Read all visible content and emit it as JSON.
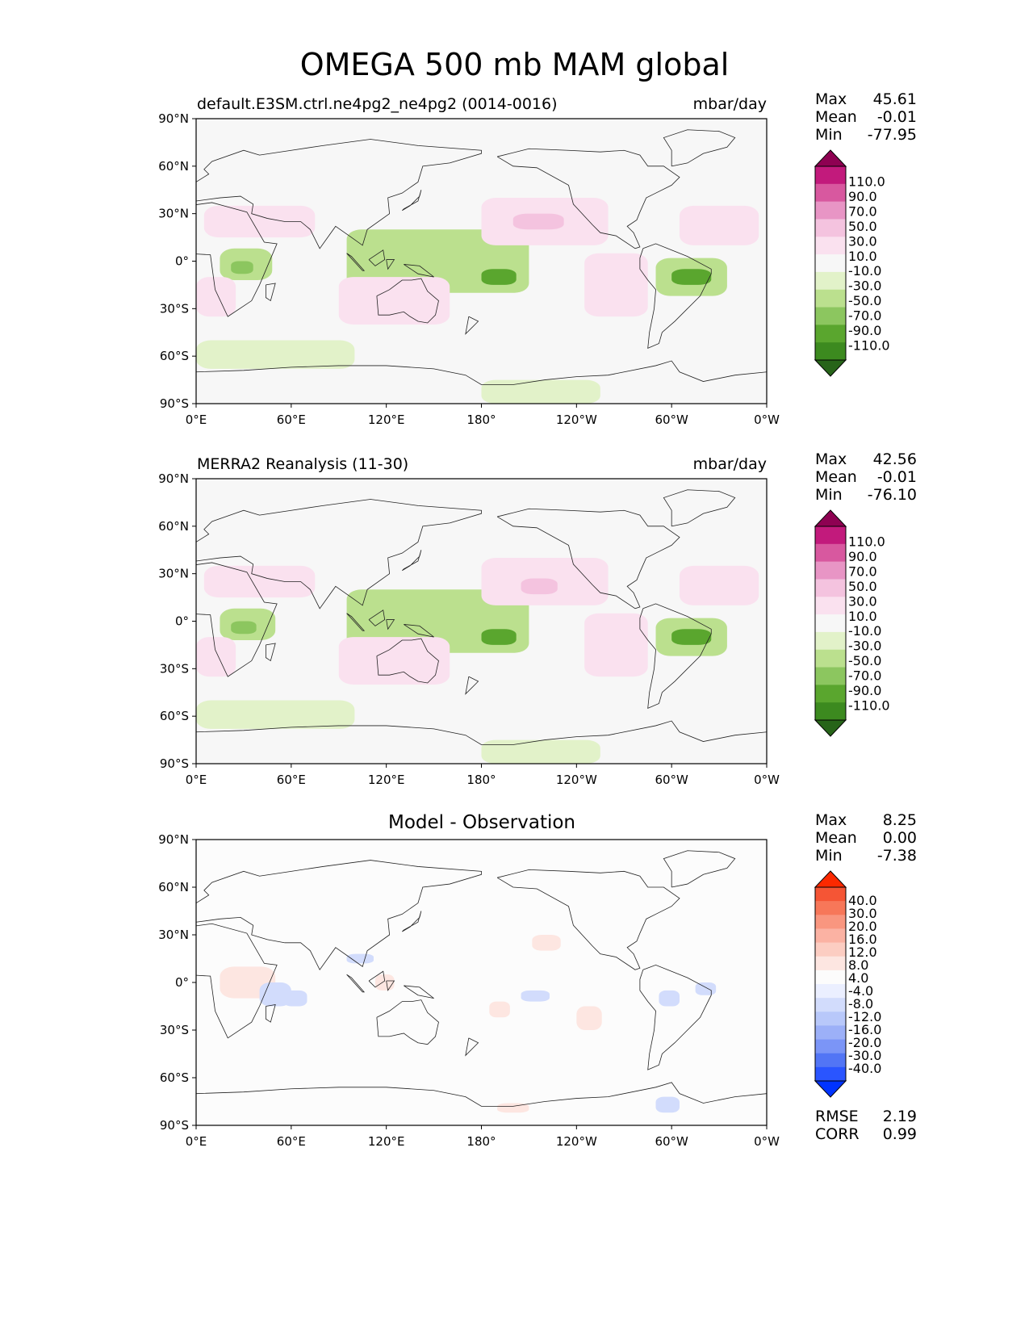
{
  "figure_title": "OMEGA 500 mb MAM global",
  "lon_ticks": [
    "0°E",
    "60°E",
    "120°E",
    "180°",
    "120°W",
    "60°W",
    "0°W"
  ],
  "lat_ticks": [
    "90°N",
    "60°N",
    "30°N",
    "0°",
    "30°S",
    "60°S",
    "90°S"
  ],
  "stat_labels": {
    "max": "Max",
    "mean": "Mean",
    "min": "Min",
    "rmse": "RMSE",
    "corr": "CORR"
  },
  "colors": {
    "field_levels": [
      "#276419",
      "#3c8a1f",
      "#5aa62e",
      "#8cc65f",
      "#bbe08e",
      "#e2f2c9",
      "#f7f7f7",
      "#fae1ef",
      "#f4c3df",
      "#e895c5",
      "#d8589f",
      "#c21a7c",
      "#8e0152"
    ],
    "diff_levels": [
      "#0033ff",
      "#2a55ff",
      "#5275f5",
      "#7b95f7",
      "#9cb0f8",
      "#b8c8fa",
      "#d2dcfc",
      "#ebefff",
      "#fcfcfc",
      "#fde6e1",
      "#fccdc2",
      "#fbb2a3",
      "#f9967f",
      "#f77759",
      "#f55535",
      "#fb2900"
    ]
  },
  "chart_data": [
    {
      "type": "heatmap",
      "panel": "test",
      "title_left": "default.E3SM.ctrl.ne4pg2_ne4pg2 (0014-0016)",
      "title_right": "mbar/day",
      "stats": {
        "max": "45.61",
        "mean": "-0.01",
        "min": "-77.95"
      },
      "colorbar_labels": [
        "110.0",
        "90.0",
        "70.0",
        "50.0",
        "30.0",
        "10.0",
        "-10.0",
        "-30.0",
        "-50.0",
        "-70.0",
        "-90.0",
        "-110.0"
      ],
      "regions": [
        {
          "name": "central Africa",
          "lon": [
            15,
            48
          ],
          "lat": [
            -12,
            8
          ],
          "value": -40
        },
        {
          "name": "east Africa core",
          "lon": [
            22,
            36
          ],
          "lat": [
            -8,
            0
          ],
          "value": -60
        },
        {
          "name": "Maritime continent to SPCZ",
          "lon": [
            95,
            210
          ],
          "lat": [
            -20,
            20
          ],
          "value": -35
        },
        {
          "name": "SPCZ core",
          "lon": [
            180,
            202
          ],
          "lat": [
            -15,
            -5
          ],
          "value": -70
        },
        {
          "name": "Amazon",
          "lon": [
            290,
            335
          ],
          "lat": [
            -22,
            2
          ],
          "value": -40
        },
        {
          "name": "Amazon core",
          "lon": [
            300,
            325
          ],
          "lat": [
            -15,
            -5
          ],
          "value": -75
        },
        {
          "name": "North Pacific subsidence",
          "lon": [
            180,
            260
          ],
          "lat": [
            10,
            40
          ],
          "value": 30
        },
        {
          "name": "North Pacific core",
          "lon": [
            200,
            232
          ],
          "lat": [
            20,
            30
          ],
          "value": 45
        },
        {
          "name": "North Atlantic subsidence",
          "lon": [
            305,
            355
          ],
          "lat": [
            10,
            35
          ],
          "value": 30
        },
        {
          "name": "Sahara",
          "lon": [
            5,
            75
          ],
          "lat": [
            15,
            35
          ],
          "value": 20
        },
        {
          "name": "South Atlantic",
          "lon": [
            0,
            25
          ],
          "lat": [
            -35,
            -10
          ],
          "value": 25
        },
        {
          "name": "Australia subsidence",
          "lon": [
            90,
            160
          ],
          "lat": [
            -40,
            -10
          ],
          "value": 20
        },
        {
          "name": "SE Pacific subsidence",
          "lon": [
            245,
            285
          ],
          "lat": [
            -35,
            5
          ],
          "value": 20
        },
        {
          "name": "Southern Ocean ascent",
          "lon": [
            0,
            100
          ],
          "lat": [
            -68,
            -50
          ],
          "value": -15
        },
        {
          "name": "Antarctic coast ascent",
          "lon": [
            180,
            255
          ],
          "lat": [
            -90,
            -75
          ],
          "value": -15
        }
      ]
    },
    {
      "type": "heatmap",
      "panel": "reference",
      "title_left": "MERRA2 Reanalysis (11-30)",
      "title_right": "mbar/day",
      "stats": {
        "max": "42.56",
        "mean": "-0.01",
        "min": "-76.10"
      },
      "colorbar_labels": [
        "110.0",
        "90.0",
        "70.0",
        "50.0",
        "30.0",
        "10.0",
        "-10.0",
        "-30.0",
        "-50.0",
        "-70.0",
        "-90.0",
        "-110.0"
      ],
      "regions": [
        {
          "name": "central Africa",
          "lon": [
            15,
            50
          ],
          "lat": [
            -12,
            8
          ],
          "value": -40
        },
        {
          "name": "east Africa core",
          "lon": [
            22,
            38
          ],
          "lat": [
            -8,
            0
          ],
          "value": -60
        },
        {
          "name": "Maritime continent to SPCZ",
          "lon": [
            95,
            210
          ],
          "lat": [
            -20,
            20
          ],
          "value": -35
        },
        {
          "name": "SPCZ core",
          "lon": [
            180,
            202
          ],
          "lat": [
            -15,
            -5
          ],
          "value": -70
        },
        {
          "name": "Amazon",
          "lon": [
            290,
            335
          ],
          "lat": [
            -22,
            2
          ],
          "value": -40
        },
        {
          "name": "Amazon core",
          "lon": [
            300,
            325
          ],
          "lat": [
            -15,
            -5
          ],
          "value": -75
        },
        {
          "name": "North Pacific subsidence",
          "lon": [
            180,
            260
          ],
          "lat": [
            10,
            40
          ],
          "value": 30
        },
        {
          "name": "North Pacific core",
          "lon": [
            205,
            228
          ],
          "lat": [
            17,
            27
          ],
          "value": 40
        },
        {
          "name": "North Atlantic subsidence",
          "lon": [
            305,
            355
          ],
          "lat": [
            10,
            35
          ],
          "value": 30
        },
        {
          "name": "Sahara",
          "lon": [
            5,
            75
          ],
          "lat": [
            15,
            35
          ],
          "value": 20
        },
        {
          "name": "South Atlantic",
          "lon": [
            0,
            25
          ],
          "lat": [
            -35,
            -10
          ],
          "value": 25
        },
        {
          "name": "Australia subsidence",
          "lon": [
            90,
            160
          ],
          "lat": [
            -40,
            -10
          ],
          "value": 20
        },
        {
          "name": "SE Pacific subsidence",
          "lon": [
            245,
            285
          ],
          "lat": [
            -35,
            5
          ],
          "value": 20
        },
        {
          "name": "Southern Ocean ascent",
          "lon": [
            0,
            100
          ],
          "lat": [
            -68,
            -50
          ],
          "value": -15
        },
        {
          "name": "Antarctic coast ascent",
          "lon": [
            180,
            255
          ],
          "lat": [
            -90,
            -75
          ],
          "value": -15
        }
      ]
    },
    {
      "type": "heatmap",
      "panel": "difference",
      "title_center": "Model - Observation",
      "stats": {
        "max": "8.25",
        "mean": "0.00",
        "min": "-7.38"
      },
      "metrics": {
        "rmse": "2.19",
        "corr": "0.99"
      },
      "colorbar_labels": [
        "40.0",
        "30.0",
        "20.0",
        "16.0",
        "12.0",
        "8.0",
        "4.0",
        "-4.0",
        "-8.0",
        "-12.0",
        "-16.0",
        "-20.0",
        "-30.0",
        "-40.0"
      ],
      "regions": [
        {
          "name": "East Africa",
          "lon": [
            15,
            50
          ],
          "lat": [
            -10,
            10
          ],
          "value": 6
        },
        {
          "name": "Indian Ocean",
          "lon": [
            40,
            60
          ],
          "lat": [
            -15,
            0
          ],
          "value": -5
        },
        {
          "name": "Bay of Bengal",
          "lon": [
            55,
            70
          ],
          "lat": [
            -15,
            -5
          ],
          "value": -6
        },
        {
          "name": "South China Sea",
          "lon": [
            95,
            112
          ],
          "lat": [
            12,
            18
          ],
          "value": -5
        },
        {
          "name": "Maritime continent",
          "lon": [
            113,
            125
          ],
          "lat": [
            -5,
            5
          ],
          "value": 6
        },
        {
          "name": "North Pacific",
          "lon": [
            212,
            230
          ],
          "lat": [
            20,
            30
          ],
          "value": 6
        },
        {
          "name": "Central Pacific",
          "lon": [
            185,
            198
          ],
          "lat": [
            -22,
            -12
          ],
          "value": 5
        },
        {
          "name": "Tropical Pacific",
          "lon": [
            205,
            223
          ],
          "lat": [
            -12,
            -5
          ],
          "value": -5
        },
        {
          "name": "East Pacific",
          "lon": [
            240,
            256
          ],
          "lat": [
            -30,
            -15
          ],
          "value": 6
        },
        {
          "name": "Amazon",
          "lon": [
            292,
            305
          ],
          "lat": [
            -15,
            -5
          ],
          "value": -5
        },
        {
          "name": "NE Brazil",
          "lon": [
            315,
            328
          ],
          "lat": [
            -8,
            0
          ],
          "value": -5
        },
        {
          "name": "Weddell Sea",
          "lon": [
            290,
            305
          ],
          "lat": [
            -82,
            -72
          ],
          "value": -7
        },
        {
          "name": "Southern Ocean",
          "lon": [
            190,
            210
          ],
          "lat": [
            -82,
            -76
          ],
          "value": 5
        }
      ]
    }
  ]
}
